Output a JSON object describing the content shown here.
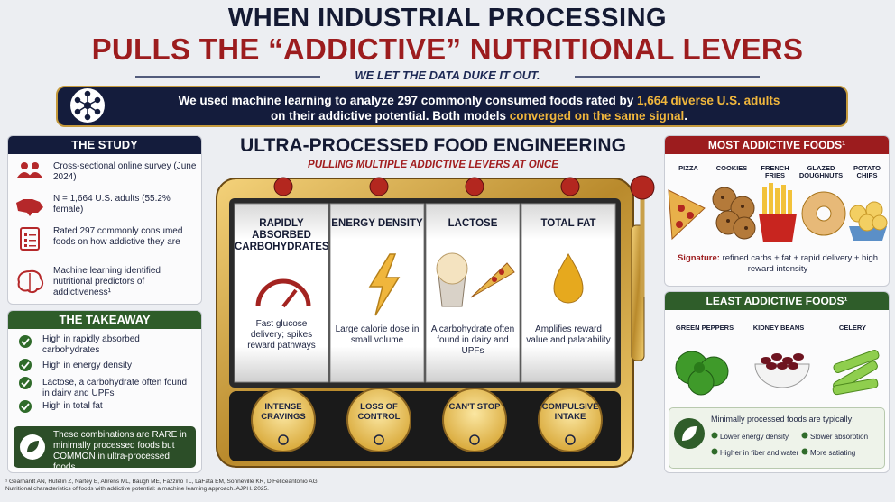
{
  "header": {
    "title_line1": "WHEN INDUSTRIAL PROCESSING",
    "title_line2": "PULLS THE “ADDICTIVE” NUTRITIONAL LEVERS",
    "tagline": "WE LET THE DATA DUKE IT OUT."
  },
  "banner": {
    "line1": [
      "We used machine learning to analyze 297 commonly consumed foods rated by ",
      "1,664 diverse U.S. adults"
    ],
    "line2": [
      "on their addictive potential. Both models ",
      "converged on the same signal",
      "."
    ]
  },
  "study": {
    "title": "THE STUDY",
    "items": [
      "Cross-sectional online survey (June 2024)",
      "N = 1,664 U.S. adults (55.2% female)",
      "Rated 297 commonly consumed foods on how addictive they are",
      "Machine learning identified nutritional predictors of addictiveness¹"
    ]
  },
  "takeaway": {
    "title": "THE TAKEAWAY",
    "items": [
      "High in rapidly absorbed carbohydrates",
      "High in energy density",
      "Lactose, a carbohydrate often found in dairy and UPFs",
      "High in total fat"
    ],
    "note": "These combinations are RARE in minimally processed foods but COMMON in ultra-processed foods."
  },
  "center": {
    "title": "ULTRA-PROCESSED FOOD ENGINEERING",
    "subtitle": "PULLING MULTIPLE ADDICTIVE LEVERS AT ONCE",
    "reels": [
      {
        "label": "RAPIDLY ABSORBED CARBOHYDRATES",
        "description": "Fast glucose delivery; spikes reward pathways"
      },
      {
        "label": "ENERGY DENSITY",
        "description": "Large calorie dose in small volume"
      },
      {
        "label": "LACTOSE",
        "description": "A carbohydrate often found in dairy and UPFs"
      },
      {
        "label": "TOTAL FAT",
        "description": "Amplifies reward value and palatability"
      }
    ],
    "buttons": [
      "INTENSE CRAVINGS",
      "LOSS OF CONTROL",
      "CAN'T STOP",
      "COMPULSIVE INTAKE"
    ]
  },
  "most": {
    "title": "MOST ADDICTIVE FOODS¹",
    "foods": [
      "PIZZA",
      "COOKIES",
      "FRENCH FRIES",
      "GLAZED DOUGHNUTS",
      "POTATO CHIPS"
    ],
    "signature_label": "Signature:",
    "signature": "refined carbs + fat + rapid delivery + high reward intensity"
  },
  "least": {
    "title": "LEAST ADDICTIVE FOODS¹",
    "foods": [
      "GREEN PEPPERS",
      "KIDNEY BEANS",
      "CELERY"
    ],
    "note_title": "Minimally processed foods are typically:",
    "traits": [
      "Lower energy density",
      "Slower absorption",
      "Higher in fiber and water",
      "More satiating"
    ]
  },
  "footer": {
    "citation_line1": "¹ Gearhardt AN, Hutelin Z, Nartey E, Ahrens ML, Baugh ME, Fazzino TL, LaFata EM, Sonneville KR, DiFeliceantonio AG.",
    "citation_line2": "Nutritional characteristics of foods with addictive potential: a machine learning approach. AJPH. 2025."
  }
}
